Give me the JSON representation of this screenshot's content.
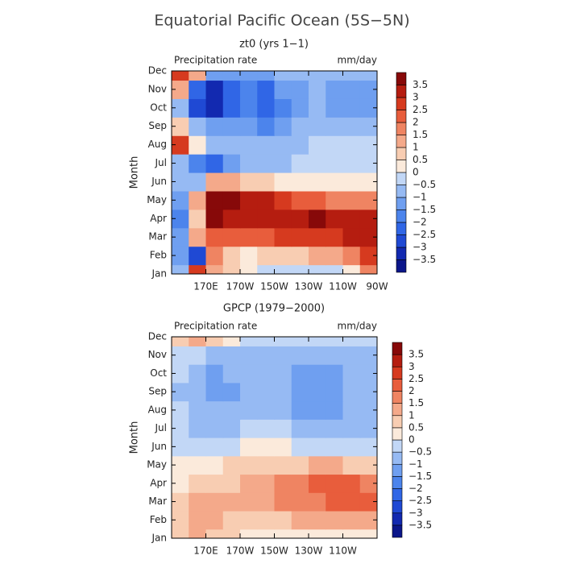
{
  "title": "Equatorial Pacific Ocean (5S−5N)",
  "chart_data": [
    {
      "type": "contour",
      "title": "zt0 (yrs 1−1)",
      "left_label": "Precipitation rate",
      "right_label": "mm/day",
      "ylabel": "Month",
      "categories": [
        "Jan",
        "Feb",
        "Mar",
        "Apr",
        "May",
        "Jun",
        "Jul",
        "Aug",
        "Sep",
        "Oct",
        "Nov",
        "Dec"
      ],
      "x": [
        155,
        165,
        175,
        185,
        195,
        205,
        215,
        225,
        235,
        245,
        255,
        265
      ],
      "xlim": [
        150,
        270
      ],
      "xticks": [
        {
          "value": 170,
          "label": "170E"
        },
        {
          "value": 190,
          "label": "170W"
        },
        {
          "value": 210,
          "label": "150W"
        },
        {
          "value": 230,
          "label": "130W"
        },
        {
          "value": 250,
          "label": "110W"
        },
        {
          "value": 270,
          "label": "90W"
        }
      ],
      "z": [
        [
          -1,
          2.5,
          1,
          0.5,
          0,
          -0.3,
          -0.3,
          -0.3,
          -0.3,
          -0.3,
          0,
          1.5
        ],
        [
          -1.5,
          -3,
          1.5,
          0.5,
          0.2,
          0.5,
          0.5,
          0.8,
          1,
          1.2,
          1.5,
          2.5
        ],
        [
          -1.5,
          1,
          2,
          2,
          2,
          2.2,
          2.5,
          2.5,
          2.5,
          2.7,
          3,
          3
        ],
        [
          -2,
          0.5,
          3.5,
          3,
          3,
          3,
          3,
          3.3,
          3.5,
          3,
          3,
          3
        ],
        [
          -1.5,
          1,
          3.5,
          3.5,
          3,
          3,
          2.5,
          2,
          2,
          1.5,
          1.5,
          1.5
        ],
        [
          -1,
          -1,
          1,
          1,
          0.5,
          0.5,
          0.3,
          0.2,
          0.2,
          0,
          0,
          0
        ],
        [
          -1,
          -2,
          -2.5,
          -1.5,
          -1,
          -1,
          -1,
          -0.5,
          -0.5,
          -0.5,
          -0.5,
          -0.5
        ],
        [
          2.5,
          0,
          -1,
          -1,
          -0.8,
          -1,
          -1,
          -0.8,
          -0.5,
          -0.5,
          -0.5,
          -0.5
        ],
        [
          0.5,
          -1,
          -1.5,
          -1.5,
          -1.5,
          -2,
          -1.5,
          -1,
          -1,
          -1,
          -1,
          -1
        ],
        [
          -1,
          -3,
          -3.5,
          -2.5,
          -2,
          -2.5,
          -2,
          -1.5,
          -1,
          -1.5,
          -1.5,
          -1.5
        ],
        [
          1,
          -2.5,
          -3.5,
          -2.5,
          -2,
          -2.5,
          -1.5,
          -1.5,
          -1,
          -1.5,
          -1.5,
          -1.5
        ],
        [
          2.5,
          1,
          -1.5,
          -1.5,
          -1.5,
          -1.5,
          -1,
          -1,
          -1,
          -1,
          -1,
          -1
        ]
      ],
      "levels": [
        {
          "value": -3.5,
          "label": "−3.5"
        },
        {
          "value": -3,
          "label": "−3"
        },
        {
          "value": -2.5,
          "label": "−2.5"
        },
        {
          "value": -2,
          "label": "−2"
        },
        {
          "value": -1.5,
          "label": "−1.5"
        },
        {
          "value": -1,
          "label": "−1"
        },
        {
          "value": -0.5,
          "label": "−0.5"
        },
        0,
        0.5,
        1,
        1.5,
        2,
        2.5,
        3,
        3.5
      ],
      "colors": [
        "#0b168a",
        "#1229b0",
        "#1f49d4",
        "#3066e6",
        "#4c84ec",
        "#6f9ff0",
        "#96baf3",
        "#c2d7f6",
        "#fbeadb",
        "#f8cdb2",
        "#f4a98a",
        "#ef8462",
        "#e85d3c",
        "#d63a1f",
        "#b51d10",
        "#870909"
      ]
    },
    {
      "type": "contour",
      "title": "GPCP (1979−2000)",
      "left_label": "Precipitation rate",
      "right_label": "mm/day",
      "ylabel": "Month",
      "categories": [
        "Jan",
        "Feb",
        "Mar",
        "Apr",
        "May",
        "Jun",
        "Jul",
        "Aug",
        "Sep",
        "Oct",
        "Nov",
        "Dec"
      ],
      "x": [
        155,
        165,
        175,
        185,
        195,
        205,
        215,
        225,
        235,
        245,
        255,
        265
      ],
      "xlim": [
        150,
        270
      ],
      "xticks": [
        {
          "value": 170,
          "label": "170E"
        },
        {
          "value": 190,
          "label": "170W"
        },
        {
          "value": 210,
          "label": "150W"
        },
        {
          "value": 230,
          "label": "130W"
        },
        {
          "value": 250,
          "label": "110W"
        }
      ],
      "z": [
        [
          0.5,
          1,
          0.8,
          0.5,
          0.3,
          0.2,
          0.2,
          0.3,
          0.3,
          0.2,
          0.2,
          0.2
        ],
        [
          0.5,
          1,
          1,
          0.5,
          0.5,
          0.5,
          0.8,
          1,
          1,
          1,
          1,
          1
        ],
        [
          0.5,
          1,
          1,
          1,
          1,
          1.2,
          1.5,
          1.5,
          1.8,
          2,
          2,
          2
        ],
        [
          0.3,
          0.5,
          0.5,
          0.8,
          1,
          1.2,
          1.5,
          1.8,
          2,
          2,
          2,
          1.8
        ],
        [
          0,
          0,
          0.3,
          0.5,
          0.5,
          0.5,
          0.8,
          0.8,
          1,
          1,
          0.8,
          0.8
        ],
        [
          -0.5,
          -0.5,
          -0.3,
          -0.2,
          0,
          0,
          0,
          -0.2,
          -0.3,
          -0.5,
          -0.5,
          -0.5
        ],
        [
          -0.5,
          -1,
          -1,
          -0.8,
          -0.5,
          -0.5,
          -0.5,
          -0.8,
          -1,
          -1,
          -1,
          -1
        ],
        [
          -0.5,
          -1,
          -1,
          -1,
          -1,
          -1,
          -1,
          -1.3,
          -1.3,
          -1.3,
          -1,
          -1
        ],
        [
          -1,
          -1,
          -1.5,
          -1.3,
          -1,
          -1,
          -1,
          -1.5,
          -1.5,
          -1.5,
          -1,
          -1
        ],
        [
          -0.5,
          -1,
          -1.5,
          -1,
          -1,
          -1,
          -1,
          -1.5,
          -1.5,
          -1.5,
          -1,
          -1
        ],
        [
          -0.5,
          -0.5,
          -1,
          -1,
          -0.8,
          -0.8,
          -0.8,
          -0.8,
          -0.8,
          -0.8,
          -0.8,
          -0.8
        ],
        [
          0.5,
          1,
          0.5,
          0,
          -0.3,
          -0.3,
          -0.3,
          -0.3,
          -0.3,
          -0.3,
          -0.3,
          -0.3
        ]
      ],
      "levels": [
        {
          "value": -3.5,
          "label": "−3.5"
        },
        {
          "value": -3,
          "label": "−3"
        },
        {
          "value": -2.5,
          "label": "−2.5"
        },
        {
          "value": -2,
          "label": "−2"
        },
        {
          "value": -1.5,
          "label": "−1.5"
        },
        {
          "value": -1,
          "label": "−1"
        },
        {
          "value": -0.5,
          "label": "−0.5"
        },
        0,
        0.5,
        1,
        1.5,
        2,
        2.5,
        3,
        3.5
      ],
      "colors": [
        "#0b168a",
        "#1229b0",
        "#1f49d4",
        "#3066e6",
        "#4c84ec",
        "#6f9ff0",
        "#96baf3",
        "#c2d7f6",
        "#fbeadb",
        "#f8cdb2",
        "#f4a98a",
        "#ef8462",
        "#e85d3c",
        "#d63a1f",
        "#b51d10",
        "#870909"
      ]
    }
  ]
}
